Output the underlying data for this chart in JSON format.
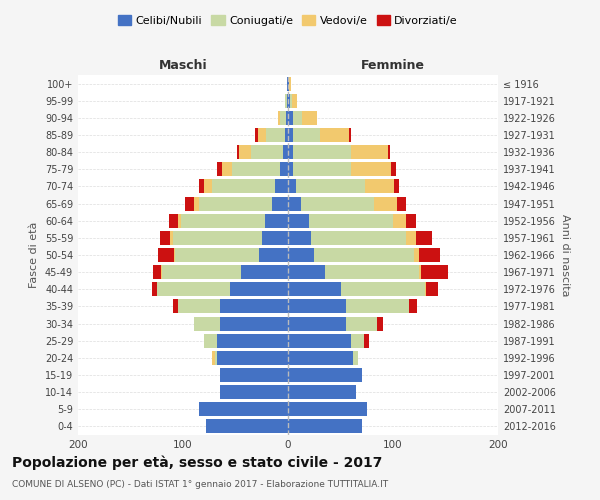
{
  "age_groups": [
    "0-4",
    "5-9",
    "10-14",
    "15-19",
    "20-24",
    "25-29",
    "30-34",
    "35-39",
    "40-44",
    "45-49",
    "50-54",
    "55-59",
    "60-64",
    "65-69",
    "70-74",
    "75-79",
    "80-84",
    "85-89",
    "90-94",
    "95-99",
    "100+"
  ],
  "birth_years": [
    "2012-2016",
    "2007-2011",
    "2002-2006",
    "1997-2001",
    "1992-1996",
    "1987-1991",
    "1982-1986",
    "1977-1981",
    "1972-1976",
    "1967-1971",
    "1962-1966",
    "1957-1961",
    "1952-1956",
    "1947-1951",
    "1942-1946",
    "1937-1941",
    "1932-1936",
    "1927-1931",
    "1922-1926",
    "1917-1921",
    "≤ 1916"
  ],
  "colors": {
    "celibi": "#4472C4",
    "coniugati": "#c8d9a4",
    "vedovi": "#f2c96e",
    "divorziati": "#cc1111"
  },
  "males": {
    "celibi": [
      78,
      85,
      65,
      65,
      68,
      68,
      65,
      65,
      55,
      45,
      28,
      25,
      22,
      15,
      12,
      8,
      5,
      3,
      2,
      1,
      1
    ],
    "coniugati": [
      0,
      0,
      0,
      0,
      2,
      12,
      25,
      40,
      70,
      75,
      80,
      85,
      80,
      70,
      60,
      45,
      30,
      18,
      6,
      2,
      0
    ],
    "vedovi": [
      0,
      0,
      0,
      0,
      2,
      0,
      0,
      0,
      0,
      1,
      1,
      2,
      3,
      5,
      8,
      10,
      12,
      8,
      2,
      0,
      0
    ],
    "divorziati": [
      0,
      0,
      0,
      0,
      0,
      0,
      0,
      5,
      5,
      8,
      15,
      10,
      8,
      8,
      5,
      5,
      2,
      2,
      0,
      0,
      0
    ]
  },
  "females": {
    "celibi": [
      70,
      75,
      65,
      70,
      62,
      60,
      55,
      55,
      50,
      35,
      25,
      22,
      20,
      12,
      8,
      5,
      5,
      5,
      5,
      2,
      1
    ],
    "coniugati": [
      0,
      0,
      0,
      0,
      5,
      12,
      30,
      60,
      80,
      90,
      95,
      90,
      80,
      70,
      65,
      55,
      55,
      25,
      8,
      2,
      0
    ],
    "vedovi": [
      0,
      0,
      0,
      0,
      0,
      0,
      0,
      0,
      1,
      2,
      5,
      10,
      12,
      22,
      28,
      38,
      35,
      28,
      15,
      5,
      2
    ],
    "divorziati": [
      0,
      0,
      0,
      0,
      0,
      5,
      5,
      8,
      12,
      25,
      20,
      15,
      10,
      8,
      5,
      5,
      2,
      2,
      0,
      0,
      0
    ]
  },
  "xlim": 200,
  "title": "Popolazione per età, sesso e stato civile - 2017",
  "subtitle": "COMUNE DI ALSENO (PC) - Dati ISTAT 1° gennaio 2017 - Elaborazione TUTTITALIA.IT",
  "ylabel_left": "Fasce di età",
  "ylabel_right": "Anni di nascita",
  "xlabel_left": "Maschi",
  "xlabel_right": "Femmine",
  "legend_labels": [
    "Celibi/Nubili",
    "Coniugati/e",
    "Vedovi/e",
    "Divorziati/e"
  ],
  "background_color": "#f5f5f5",
  "bar_background": "#ffffff"
}
